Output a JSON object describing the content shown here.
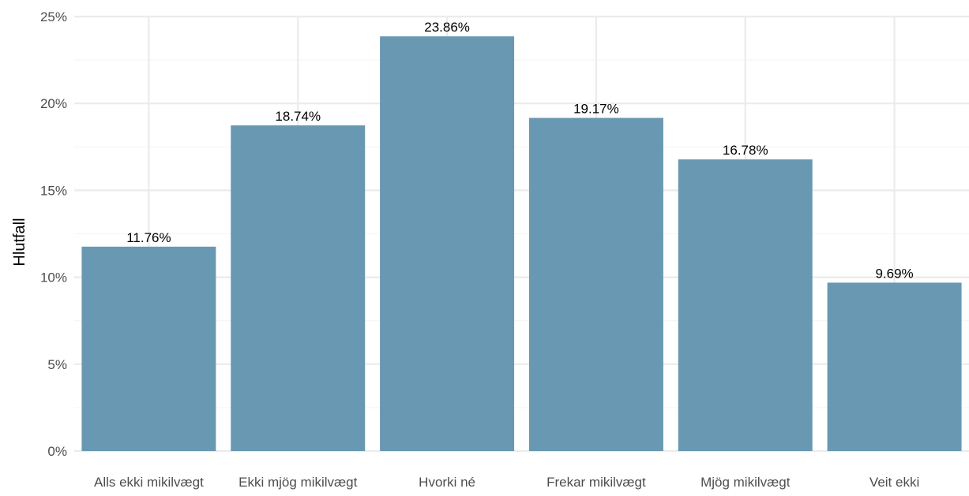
{
  "chart_data": {
    "type": "bar",
    "categories": [
      "Alls ekki mikilvægt",
      "Ekki mjög mikilvægt",
      "Hvorki né",
      "Frekar mikilvægt",
      "Mjög mikilvægt",
      "Veit ekki"
    ],
    "values": [
      11.76,
      18.74,
      23.86,
      19.17,
      16.78,
      9.69
    ],
    "data_labels": [
      "11.76%",
      "18.74%",
      "23.86%",
      "19.17%",
      "16.78%",
      "9.69%"
    ],
    "title": "",
    "xlabel": "",
    "ylabel": "Hlutfall",
    "ylim": [
      0,
      25
    ],
    "y_ticks": [
      0,
      5,
      10,
      15,
      20,
      25
    ],
    "y_tick_labels": [
      "0%",
      "5%",
      "10%",
      "15%",
      "20%",
      "25%"
    ],
    "grid": true,
    "legend": "none",
    "colors": {
      "bar": "#6898b2",
      "grid_major": "#ebebeb",
      "grid_minor": "#f5f5f5",
      "tick_text": "#4d4d4d",
      "label_text": "#000000"
    }
  }
}
